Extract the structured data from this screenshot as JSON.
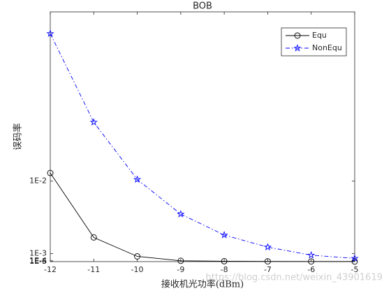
{
  "chart_data": {
    "type": "line",
    "title": "BOB",
    "x_label": "接收机光功率(dBm)",
    "y_label": "误码率",
    "x": [
      -12,
      -11,
      -10,
      -9,
      -8,
      -7,
      -6,
      -5
    ],
    "series": [
      {
        "name": "Equ",
        "color": "#000000",
        "marker": "circle",
        "linestyle": "solid",
        "values": [
          0.011,
          0.003,
          0.00065,
          0.0001,
          5e-05,
          3e-05,
          2e-05,
          1e-05
        ]
      },
      {
        "name": "NonEqu",
        "color": "#0000ff",
        "marker": "pentagram",
        "linestyle": "dashdot",
        "values": [
          0.0283,
          0.0173,
          0.0102,
          0.0059,
          0.0033,
          0.0018,
          0.0008,
          0.0004
        ]
      }
    ],
    "xlim": [
      -12,
      -5
    ],
    "xticks": [
      -12,
      -11,
      -10,
      -9,
      -8,
      -7,
      -6,
      -5
    ],
    "ylim": [
      0,
      0.031
    ],
    "yticks": [
      {
        "value": 1e-06,
        "label": "1E-6"
      },
      {
        "value": 1e-05,
        "label": "1E-5"
      },
      {
        "value": 0.0001,
        "label": "1E-4"
      },
      {
        "value": 0.001,
        "label": "1E-3"
      },
      {
        "value": 0.01,
        "label": "1E-2"
      }
    ],
    "legend": "upper right",
    "watermark": "https://blog.csdn.net/weixin_43901619"
  }
}
